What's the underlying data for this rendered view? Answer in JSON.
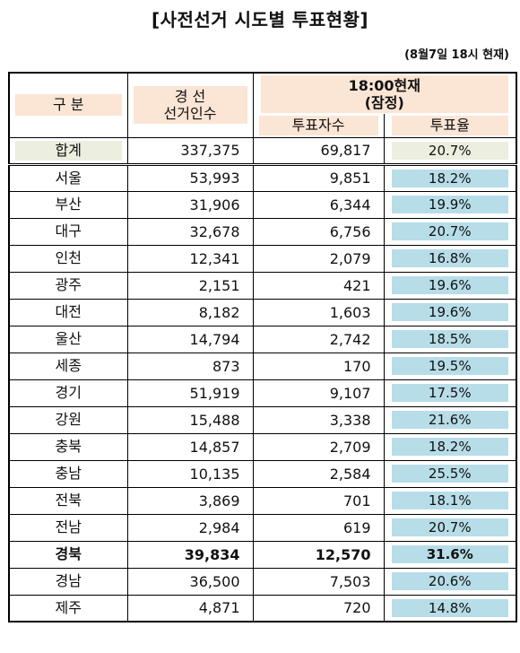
{
  "title": "[사전선거 시도별 투표현황]",
  "as_of": "(8월7일 18시 현재)",
  "header": {
    "col_region": "구 분",
    "col_voters_l1": "경 선",
    "col_voters_l2": "선거인수",
    "col_group_l1": "18:00현재",
    "col_group_l2": "(잠정)",
    "col_turnout_count": "투표자수",
    "col_turnout_rate": "투표율"
  },
  "total": {
    "region": "합계",
    "voters": "337,375",
    "count": "69,817",
    "rate": "20.7%"
  },
  "rows": [
    {
      "region": "서울",
      "voters": "53,993",
      "count": "9,851",
      "rate": "18.2%"
    },
    {
      "region": "부산",
      "voters": "31,906",
      "count": "6,344",
      "rate": "19.9%"
    },
    {
      "region": "대구",
      "voters": "32,678",
      "count": "6,756",
      "rate": "20.7%"
    },
    {
      "region": "인천",
      "voters": "12,341",
      "count": "2,079",
      "rate": "16.8%"
    },
    {
      "region": "광주",
      "voters": "2,151",
      "count": "421",
      "rate": "19.6%"
    },
    {
      "region": "대전",
      "voters": "8,182",
      "count": "1,603",
      "rate": "19.6%"
    },
    {
      "region": "울산",
      "voters": "14,794",
      "count": "2,742",
      "rate": "18.5%"
    },
    {
      "region": "세종",
      "voters": "873",
      "count": "170",
      "rate": "19.5%"
    },
    {
      "region": "경기",
      "voters": "51,919",
      "count": "9,107",
      "rate": "17.5%"
    },
    {
      "region": "강원",
      "voters": "15,488",
      "count": "3,338",
      "rate": "21.6%"
    },
    {
      "region": "충북",
      "voters": "14,857",
      "count": "2,709",
      "rate": "18.2%"
    },
    {
      "region": "충남",
      "voters": "10,135",
      "count": "2,584",
      "rate": "25.5%"
    },
    {
      "region": "전북",
      "voters": "3,869",
      "count": "701",
      "rate": "18.1%"
    },
    {
      "region": "전남",
      "voters": "2,984",
      "count": "619",
      "rate": "20.7%"
    },
    {
      "region": "경북",
      "voters": "39,834",
      "count": "12,570",
      "rate": "31.6%",
      "bold": true
    },
    {
      "region": "경남",
      "voters": "36,500",
      "count": "7,503",
      "rate": "20.6%"
    },
    {
      "region": "제주",
      "voters": "4,871",
      "count": "720",
      "rate": "14.8%"
    }
  ]
}
